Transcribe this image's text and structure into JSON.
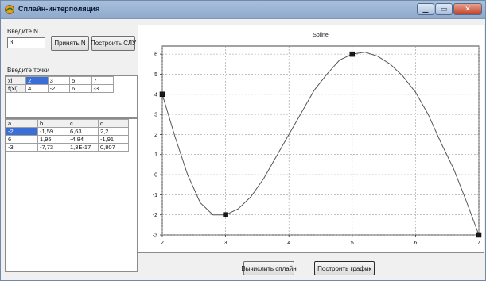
{
  "window": {
    "title": "Сплайн-интерполяция"
  },
  "left": {
    "n_label": "Введите N",
    "n_value": "3",
    "accept_n_label": "Принять N",
    "build_slu_label": "Построить СЛУ",
    "points_label": "Введите точки",
    "points_table": {
      "rows": [
        [
          "xi",
          "2",
          "3",
          "5",
          "7"
        ],
        [
          "f(xi)",
          "4",
          "-2",
          "6",
          "-3"
        ]
      ]
    },
    "coef_table": {
      "headers": [
        "a",
        "b",
        "c",
        "d"
      ],
      "rows": [
        [
          "-2",
          "-1,59",
          "6,63",
          "2,2"
        ],
        [
          "6",
          "1,95",
          "-4,84",
          "-1,91"
        ],
        [
          "-3",
          "-7,73",
          "1,3E-17",
          "0,807"
        ]
      ]
    }
  },
  "bottom": {
    "compute_label": "Вычислить сплайн",
    "plot_label": "Построить график"
  },
  "chart_data": {
    "type": "line",
    "title": "Spline",
    "xlim": [
      2,
      7
    ],
    "ylim": [
      -3,
      6.4
    ],
    "xticks": [
      "2",
      "3",
      "4",
      "5",
      "6",
      "7"
    ],
    "yticks": [
      "-3",
      "-2",
      "-1",
      "0",
      "1",
      "2",
      "3",
      "4",
      "5",
      "6"
    ],
    "grid": true,
    "series": [
      {
        "x": [
          2,
          2.2,
          2.4,
          2.6,
          2.8,
          3,
          3.2,
          3.4,
          3.6,
          3.8,
          4,
          4.2,
          4.4,
          4.6,
          4.8,
          5,
          5.2,
          5.4,
          5.6,
          5.8,
          6,
          6.2,
          6.4,
          6.6,
          6.8,
          7
        ],
        "y": [
          4,
          1.9,
          0,
          -1.4,
          -2,
          -2,
          -1.7,
          -1.1,
          -0.2,
          0.9,
          2,
          3.1,
          4.2,
          5,
          5.7,
          6,
          6.1,
          5.9,
          5.5,
          4.9,
          4.1,
          3.0,
          1.6,
          0.3,
          -1.3,
          -3
        ],
        "color": "#555555"
      }
    ],
    "nodes": {
      "x": [
        2,
        3,
        5,
        7
      ],
      "y": [
        4,
        -2,
        6,
        -3
      ],
      "color": "#1a1a1a"
    }
  }
}
